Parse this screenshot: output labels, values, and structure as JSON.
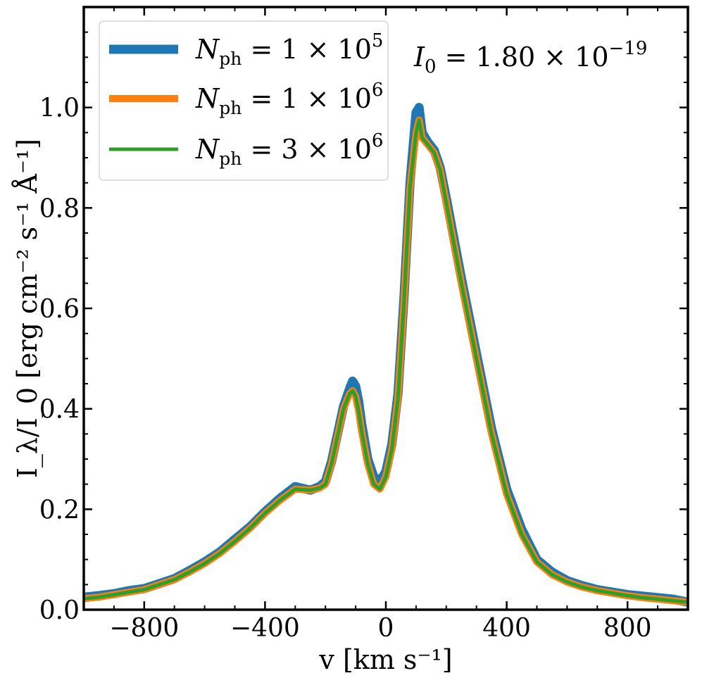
{
  "chart_data": {
    "type": "line",
    "xlabel": "v [km s⁻¹]",
    "ylabel": "I_λ/I_0 [erg cm⁻² s⁻¹ Å⁻¹]",
    "xlim": [
      -1000,
      1000
    ],
    "ylim": [
      0,
      1.2
    ],
    "xticks": [
      -800,
      -400,
      0,
      400,
      800
    ],
    "yticks": [
      0.0,
      0.2,
      0.4,
      0.6,
      0.8,
      1.0
    ],
    "xtick_labels": [
      "−800",
      "−400",
      "0",
      "400",
      "800"
    ],
    "ytick_labels": [
      "0.0",
      "0.2",
      "0.4",
      "0.6",
      "0.8",
      "1.0"
    ],
    "legend_position": "top-left",
    "grid": false,
    "annotation": {
      "base": "I",
      "sub": "0",
      "middle": " = 1.80 × 10",
      "sup": "−19"
    },
    "x": [
      -1000,
      -950,
      -900,
      -850,
      -800,
      -750,
      -700,
      -650,
      -600,
      -550,
      -500,
      -450,
      -400,
      -350,
      -300,
      -250,
      -220,
      -200,
      -180,
      -160,
      -140,
      -120,
      -110,
      -100,
      -90,
      -80,
      -60,
      -40,
      -20,
      0,
      20,
      40,
      60,
      80,
      100,
      110,
      120,
      140,
      160,
      180,
      200,
      250,
      300,
      350,
      400,
      450,
      500,
      550,
      600,
      650,
      700,
      750,
      800,
      850,
      900,
      950,
      1000
    ],
    "series": [
      {
        "name_base": "N",
        "name_sub": "ph",
        "name_rest": " = 1 × 10",
        "name_sup": "5",
        "color": "#1f77b4",
        "values": [
          0.025,
          0.028,
          0.032,
          0.038,
          0.042,
          0.052,
          0.062,
          0.078,
          0.095,
          0.115,
          0.14,
          0.165,
          0.195,
          0.222,
          0.245,
          0.238,
          0.245,
          0.255,
          0.295,
          0.35,
          0.405,
          0.44,
          0.455,
          0.445,
          0.415,
          0.37,
          0.3,
          0.265,
          0.255,
          0.275,
          0.33,
          0.43,
          0.62,
          0.85,
          0.99,
          1.0,
          0.95,
          0.93,
          0.915,
          0.88,
          0.82,
          0.66,
          0.51,
          0.36,
          0.24,
          0.16,
          0.1,
          0.075,
          0.058,
          0.048,
          0.04,
          0.035,
          0.03,
          0.027,
          0.024,
          0.021,
          0.015
        ]
      },
      {
        "name_base": "N",
        "name_sub": "ph",
        "name_rest": " = 1 × 10",
        "name_sup": "6",
        "color": "#ff7f0e",
        "values": [
          0.022,
          0.025,
          0.03,
          0.035,
          0.04,
          0.05,
          0.06,
          0.075,
          0.092,
          0.112,
          0.136,
          0.162,
          0.192,
          0.218,
          0.24,
          0.238,
          0.242,
          0.25,
          0.29,
          0.345,
          0.4,
          0.43,
          0.436,
          0.425,
          0.395,
          0.355,
          0.29,
          0.25,
          0.24,
          0.265,
          0.32,
          0.42,
          0.61,
          0.84,
          0.95,
          0.975,
          0.94,
          0.925,
          0.91,
          0.875,
          0.81,
          0.65,
          0.5,
          0.35,
          0.23,
          0.15,
          0.095,
          0.07,
          0.055,
          0.045,
          0.038,
          0.033,
          0.028,
          0.024,
          0.021,
          0.018,
          0.015
        ]
      },
      {
        "name_base": "N",
        "name_sub": "ph",
        "name_rest": " = 3 × 10",
        "name_sup": "6",
        "color": "#2ca02c",
        "values": [
          0.022,
          0.025,
          0.03,
          0.035,
          0.04,
          0.05,
          0.06,
          0.075,
          0.092,
          0.112,
          0.136,
          0.162,
          0.192,
          0.218,
          0.24,
          0.238,
          0.242,
          0.25,
          0.29,
          0.345,
          0.4,
          0.43,
          0.436,
          0.425,
          0.395,
          0.355,
          0.29,
          0.25,
          0.24,
          0.265,
          0.32,
          0.42,
          0.61,
          0.84,
          0.95,
          0.975,
          0.94,
          0.925,
          0.91,
          0.875,
          0.81,
          0.65,
          0.5,
          0.35,
          0.23,
          0.15,
          0.095,
          0.07,
          0.055,
          0.045,
          0.038,
          0.033,
          0.028,
          0.024,
          0.021,
          0.018,
          0.015
        ]
      }
    ]
  }
}
